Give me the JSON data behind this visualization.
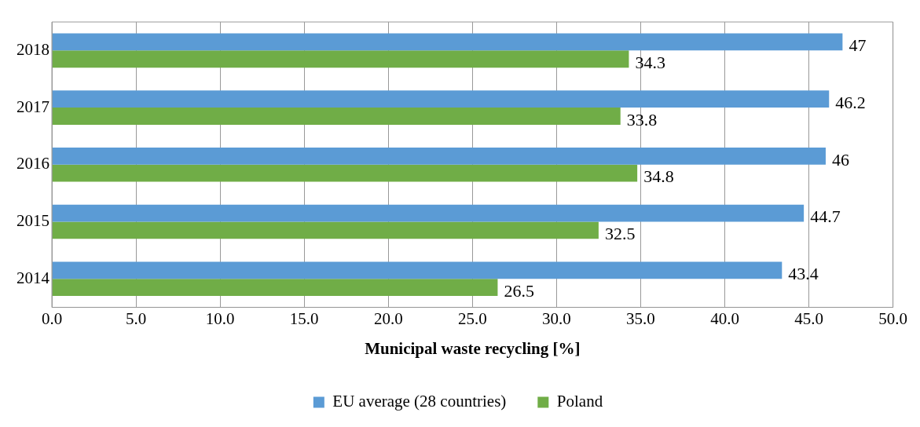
{
  "chart_data": {
    "type": "bar",
    "orientation": "horizontal",
    "xlabel": "Municipal waste recycling [%]",
    "categories": [
      "2018",
      "2017",
      "2016",
      "2015",
      "2014"
    ],
    "series": [
      {
        "name": "EU average (28 countries)",
        "color": "#5b9bd5",
        "values": [
          47,
          46.2,
          46,
          44.7,
          43.4
        ]
      },
      {
        "name": "Poland",
        "color": "#70ad47",
        "values": [
          34.3,
          33.8,
          34.8,
          32.5,
          26.5
        ]
      }
    ],
    "xlim": [
      0,
      50
    ],
    "xticks": [
      {
        "value": 0,
        "label": "0.0"
      },
      {
        "value": 5,
        "label": "5.0"
      },
      {
        "value": 10,
        "label": "10.0"
      },
      {
        "value": 15,
        "label": "15.0"
      },
      {
        "value": 20,
        "label": "20.0"
      },
      {
        "value": 25,
        "label": "25.0"
      },
      {
        "value": 30,
        "label": "30.0"
      },
      {
        "value": 35,
        "label": "35.0"
      },
      {
        "value": 40,
        "label": "40.0"
      },
      {
        "value": 45,
        "label": "45.0"
      },
      {
        "value": 50,
        "label": "50.0"
      }
    ],
    "grid": "x",
    "legend": "bottom",
    "data_labels": true
  }
}
